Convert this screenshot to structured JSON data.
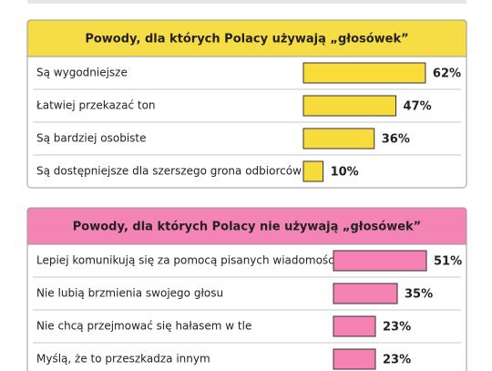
{
  "chart_data": [
    {
      "type": "bar",
      "title": "Powody, dla których Polacy używają „głosówek”",
      "categories": [
        "Są wygodniejsze",
        "Łatwiej przekazać ton",
        "Są bardziej osobiste",
        "Są dostępniejsze dla szerszego grona odbiorców"
      ],
      "values": [
        62,
        47,
        36,
        10
      ],
      "value_labels": [
        "62%",
        "47%",
        "36%",
        "10%"
      ],
      "color": "#f8dc3c",
      "header_color": "#f7dd45"
    },
    {
      "type": "bar",
      "title": "Powody, dla których Polacy nie używają „głosówek”",
      "categories": [
        "Lepiej komunikują się za pomocą pisanych wiadomości",
        "Nie lubią brzmienia swojego głosu",
        "Nie chcą przejmować się hałasem w tle",
        "Myślą, że to przeszkadza innym"
      ],
      "values": [
        51,
        35,
        23,
        23
      ],
      "value_labels": [
        "51%",
        "35%",
        "23%",
        "23%"
      ],
      "color": "#f682b4",
      "header_color": "#f584b6"
    }
  ]
}
